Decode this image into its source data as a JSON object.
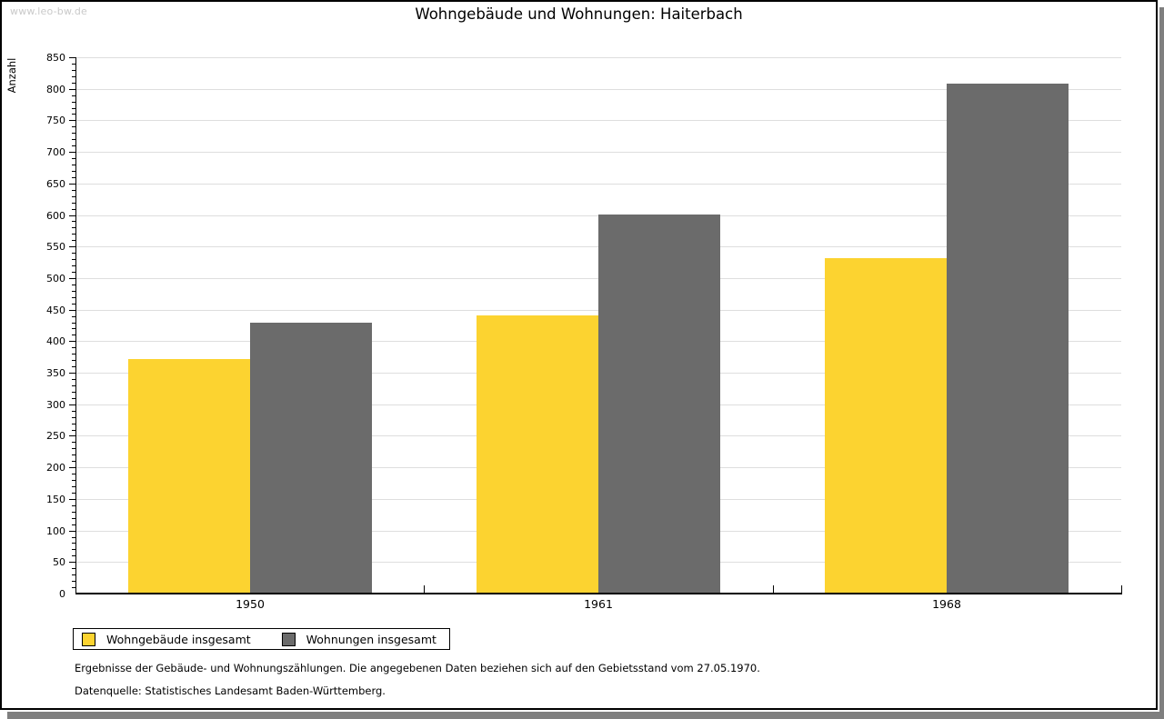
{
  "watermark": "www.leo-bw.de",
  "title": "Wohngebäude und Wohnungen: Haiterbach",
  "chart_data": {
    "type": "bar",
    "title": "Wohngebäude und Wohnungen: Haiterbach",
    "categories": [
      "1950",
      "1961",
      "1968"
    ],
    "series": [
      {
        "name": "Wohngebäude insgesamt",
        "color": "#FCD330",
        "values": [
          370,
          440,
          530
        ]
      },
      {
        "name": "Wohnungen insgesamt",
        "color": "#6B6B6B",
        "values": [
          428,
          600,
          807
        ]
      }
    ],
    "xlabel": "",
    "ylabel": "Anzahl",
    "ylim": [
      0,
      850
    ],
    "ytick_step": 50,
    "y_minor_tick_step": 10,
    "grid": true,
    "legend_position": "bottom-left"
  },
  "footnotes": {
    "line1": "Ergebnisse der Gebäude- und Wohnungszählungen. Die angegebenen Daten beziehen sich auf den Gebietsstand vom 27.05.1970.",
    "line2": "Datenquelle: Statistisches Landesamt Baden-Württemberg."
  },
  "colors": {
    "bar_yellow": "#FCD330",
    "bar_gray": "#6B6B6B",
    "gridline": "#DEDEDE",
    "axis": "#000000",
    "watermark": "#C9C9C9",
    "shadow": "#7F7F7F",
    "background": "#FFFFFF"
  }
}
